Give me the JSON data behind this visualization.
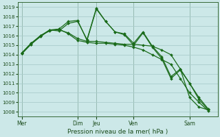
{
  "background_color": "#cce8e8",
  "grid_color": "#aacccc",
  "line_color": "#1a6b1a",
  "marker_color": "#1a6b1a",
  "title": "Pression niveau de la mer( hPa )",
  "ylim": [
    1007.5,
    1019.5
  ],
  "yticks": [
    1008,
    1009,
    1010,
    1011,
    1012,
    1013,
    1014,
    1015,
    1016,
    1017,
    1018,
    1019
  ],
  "day_labels": [
    "Mer",
    "Dim",
    "Jeu",
    "Ven",
    "Sam"
  ],
  "day_positions": [
    0,
    3,
    4,
    6,
    9
  ],
  "xlim": [
    -0.2,
    10.5
  ],
  "series": [
    {
      "x": [
        0,
        0.5,
        1.0,
        1.5,
        2.0,
        2.5,
        3.0,
        3.5,
        4.0,
        4.5,
        5.0,
        5.5,
        6.0,
        6.5,
        7.0,
        7.5,
        8.0,
        8.5,
        9.0,
        9.5,
        10.0
      ],
      "y": [
        1014.1,
        1015.2,
        1015.9,
        1016.6,
        1016.6,
        1016.3,
        1015.7,
        1015.4,
        1015.4,
        1015.3,
        1015.2,
        1015.1,
        1015.1,
        1015.0,
        1014.9,
        1014.5,
        1014.0,
        1012.5,
        1009.5,
        1008.5,
        1008.2
      ]
    },
    {
      "x": [
        0,
        0.5,
        1.0,
        1.5,
        2.0,
        2.5,
        3.0,
        3.5,
        4.0,
        4.5,
        5.0,
        5.5,
        6.0,
        6.5,
        7.0,
        7.5,
        8.0,
        8.5,
        9.0,
        9.5,
        10.0
      ],
      "y": [
        1014.1,
        1015.1,
        1016.0,
        1016.6,
        1016.7,
        1016.2,
        1015.5,
        1015.3,
        1015.2,
        1015.2,
        1015.1,
        1015.0,
        1014.8,
        1014.5,
        1014.0,
        1013.5,
        1013.0,
        1011.5,
        1010.0,
        1009.0,
        1008.1
      ]
    },
    {
      "x": [
        0,
        0.5,
        1.0,
        1.5,
        2.0,
        2.5,
        3.0,
        3.5,
        4.0,
        4.5,
        5.0,
        5.5,
        6.0,
        6.5,
        7.0,
        7.5,
        8.0,
        8.5,
        9.0,
        9.5,
        10.0
      ],
      "y": [
        1014.2,
        1015.2,
        1016.0,
        1016.5,
        1016.7,
        1017.5,
        1017.6,
        1015.5,
        1018.8,
        1017.5,
        1016.4,
        1016.2,
        1015.2,
        1016.4,
        1014.9,
        1013.8,
        1011.7,
        1012.5,
        1011.0,
        1009.5,
        1008.3
      ]
    },
    {
      "x": [
        0,
        0.5,
        1.0,
        1.5,
        2.0,
        2.5,
        3.0,
        3.5,
        4.0,
        4.5,
        5.0,
        5.5,
        6.0,
        6.5,
        7.0,
        7.5,
        8.0,
        8.5,
        9.0,
        9.5,
        10.0
      ],
      "y": [
        1014.1,
        1015.1,
        1015.9,
        1016.6,
        1016.5,
        1017.3,
        1017.5,
        1015.6,
        1018.9,
        1017.5,
        1016.4,
        1016.1,
        1015.0,
        1016.3,
        1014.8,
        1013.6,
        1011.5,
        1012.4,
        1011.0,
        1009.3,
        1008.2
      ]
    }
  ]
}
